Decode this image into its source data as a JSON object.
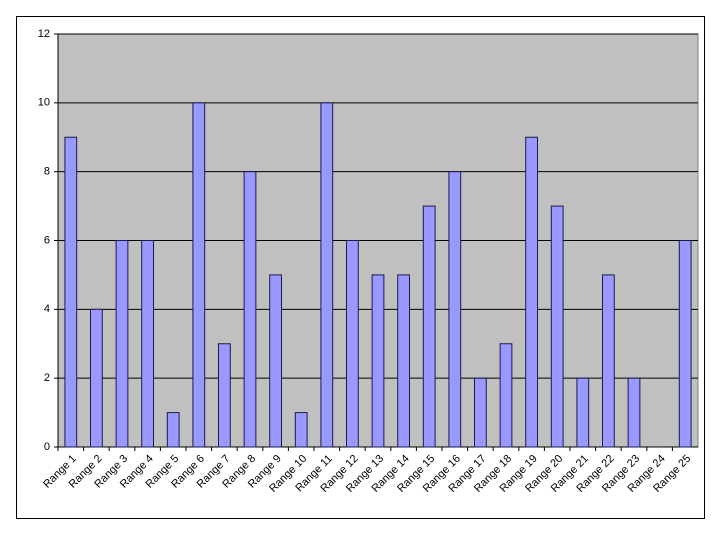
{
  "chart_data": {
    "type": "bar",
    "categories": [
      "Range 1",
      "Range 2",
      "Range 3",
      "Range 4",
      "Range 5",
      "Range 6",
      "Range 7",
      "Range 8",
      "Range 9",
      "Range 10",
      "Range 11",
      "Range 12",
      "Range 13",
      "Range 14",
      "Range 15",
      "Range 16",
      "Range 17",
      "Range 18",
      "Range 19",
      "Range 20",
      "Range 21",
      "Range 22",
      "Range 23",
      "Range 24",
      "Range 25"
    ],
    "values": [
      9,
      4,
      6,
      6,
      1,
      10,
      3,
      8,
      5,
      1,
      10,
      6,
      5,
      5,
      7,
      8,
      2,
      3,
      9,
      7,
      2,
      5,
      2,
      0,
      6
    ],
    "color": "#9999ff",
    "ylim": [
      0,
      12
    ],
    "yticks": [
      0,
      2,
      4,
      6,
      8,
      10,
      12
    ],
    "grid": true
  }
}
